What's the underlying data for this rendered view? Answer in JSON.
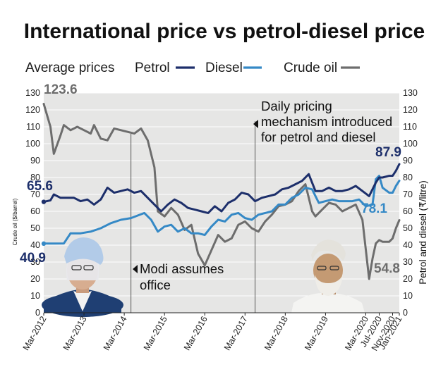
{
  "colors": {
    "petrol": "#1d2f6b",
    "diesel": "#3589c6",
    "crude": "#6d6d6d",
    "plot_bg": "#e6e6e5",
    "grid": "#ffffff"
  },
  "chart_data": {
    "type": "line",
    "title": "International price vs petrol-diesel price",
    "subtitle": "Average prices",
    "ylabel_left": "Crude oil ($/barrel)",
    "ylabel_right": "Petrol and diesel (₹/litre)",
    "ylim": [
      0,
      130
    ],
    "yticks": [
      0,
      10,
      20,
      30,
      40,
      50,
      60,
      70,
      80,
      90,
      100,
      110,
      120,
      130
    ],
    "xlim": [
      "2012-03",
      "2021-01"
    ],
    "xticks": [
      {
        "label": "Mar-2012",
        "x": "2012-03"
      },
      {
        "label": "Mar-2013",
        "x": "2013-03"
      },
      {
        "label": "Mar-2014",
        "x": "2014-03"
      },
      {
        "label": "Mar-2015",
        "x": "2015-03"
      },
      {
        "label": "Mar-2016",
        "x": "2016-03"
      },
      {
        "label": "Mar-2017",
        "x": "2017-03"
      },
      {
        "label": "Mar-2018",
        "x": "2018-03"
      },
      {
        "label": "Mar-2019",
        "x": "2019-03"
      },
      {
        "label": "Mar-2020",
        "x": "2020-03"
      },
      {
        "label": "Jul-2020",
        "x": "2020-07"
      },
      {
        "label": "Nov-2020",
        "x": "2020-11"
      },
      {
        "label": "Jan-2021",
        "x": "2021-01"
      }
    ],
    "grid": true,
    "series": [
      {
        "name": "Petrol",
        "color": "#1d2f6b",
        "points": [
          [
            "2012-03",
            65.6
          ],
          [
            "2012-05",
            66.5
          ],
          [
            "2012-06",
            70
          ],
          [
            "2012-08",
            68
          ],
          [
            "2012-10",
            68
          ],
          [
            "2012-12",
            68
          ],
          [
            "2013-02",
            66
          ],
          [
            "2013-04",
            67
          ],
          [
            "2013-06",
            64
          ],
          [
            "2013-08",
            67
          ],
          [
            "2013-10",
            74
          ],
          [
            "2013-12",
            71
          ],
          [
            "2014-02",
            72
          ],
          [
            "2014-04",
            73
          ],
          [
            "2014-06",
            71
          ],
          [
            "2014-08",
            72
          ],
          [
            "2014-10",
            68
          ],
          [
            "2014-12",
            64
          ],
          [
            "2015-02",
            60
          ],
          [
            "2015-04",
            64
          ],
          [
            "2015-06",
            67
          ],
          [
            "2015-08",
            65
          ],
          [
            "2015-10",
            62
          ],
          [
            "2015-12",
            61
          ],
          [
            "2016-02",
            60
          ],
          [
            "2016-04",
            59
          ],
          [
            "2016-06",
            63
          ],
          [
            "2016-08",
            60
          ],
          [
            "2016-10",
            65
          ],
          [
            "2016-12",
            67
          ],
          [
            "2017-02",
            71
          ],
          [
            "2017-04",
            70
          ],
          [
            "2017-06",
            66
          ],
          [
            "2017-08",
            68
          ],
          [
            "2017-10",
            69
          ],
          [
            "2017-12",
            70
          ],
          [
            "2018-02",
            73
          ],
          [
            "2018-04",
            74
          ],
          [
            "2018-06",
            76
          ],
          [
            "2018-08",
            78
          ],
          [
            "2018-10",
            82
          ],
          [
            "2018-12",
            72
          ],
          [
            "2019-02",
            72
          ],
          [
            "2019-04",
            74
          ],
          [
            "2019-06",
            72
          ],
          [
            "2019-08",
            72
          ],
          [
            "2019-10",
            73
          ],
          [
            "2019-12",
            75
          ],
          [
            "2020-02",
            72
          ],
          [
            "2020-04",
            69
          ],
          [
            "2020-06",
            77
          ],
          [
            "2020-07",
            80
          ],
          [
            "2020-08",
            80
          ],
          [
            "2020-10",
            81
          ],
          [
            "2020-11",
            81
          ],
          [
            "2020-12",
            84
          ],
          [
            "2021-01",
            87.9
          ]
        ]
      },
      {
        "name": "Diesel",
        "color": "#3589c6",
        "points": [
          [
            "2012-03",
            40.9
          ],
          [
            "2012-06",
            40.9
          ],
          [
            "2012-09",
            41
          ],
          [
            "2012-11",
            47
          ],
          [
            "2013-02",
            47
          ],
          [
            "2013-05",
            48
          ],
          [
            "2013-08",
            50
          ],
          [
            "2013-11",
            53
          ],
          [
            "2014-02",
            55
          ],
          [
            "2014-05",
            56
          ],
          [
            "2014-09",
            59
          ],
          [
            "2014-11",
            55
          ],
          [
            "2015-01",
            48
          ],
          [
            "2015-03",
            51
          ],
          [
            "2015-05",
            52
          ],
          [
            "2015-07",
            48
          ],
          [
            "2015-09",
            50
          ],
          [
            "2015-11",
            47
          ],
          [
            "2016-01",
            47
          ],
          [
            "2016-03",
            46
          ],
          [
            "2016-05",
            51
          ],
          [
            "2016-07",
            55
          ],
          [
            "2016-09",
            54
          ],
          [
            "2016-11",
            58
          ],
          [
            "2017-01",
            59
          ],
          [
            "2017-03",
            56
          ],
          [
            "2017-05",
            55
          ],
          [
            "2017-07",
            58
          ],
          [
            "2017-09",
            59
          ],
          [
            "2017-11",
            60
          ],
          [
            "2018-01",
            64
          ],
          [
            "2018-03",
            64
          ],
          [
            "2018-05",
            68
          ],
          [
            "2018-07",
            70
          ],
          [
            "2018-09",
            74
          ],
          [
            "2018-11",
            73
          ],
          [
            "2019-01",
            65
          ],
          [
            "2019-03",
            66
          ],
          [
            "2019-05",
            67
          ],
          [
            "2019-07",
            66
          ],
          [
            "2019-09",
            66
          ],
          [
            "2019-11",
            66
          ],
          [
            "2020-01",
            67
          ],
          [
            "2020-03",
            63
          ],
          [
            "2020-05",
            64
          ],
          [
            "2020-06",
            79
          ],
          [
            "2020-07",
            81
          ],
          [
            "2020-08",
            74
          ],
          [
            "2020-10",
            71
          ],
          [
            "2020-11",
            71
          ],
          [
            "2020-12",
            75
          ],
          [
            "2021-01",
            78.1
          ]
        ]
      },
      {
        "name": "Crude oil",
        "color": "#6d6d6d",
        "points": [
          [
            "2012-03",
            123.6
          ],
          [
            "2012-05",
            110
          ],
          [
            "2012-06",
            94
          ],
          [
            "2012-08",
            105
          ],
          [
            "2012-09",
            111
          ],
          [
            "2012-11",
            108
          ],
          [
            "2013-01",
            110
          ],
          [
            "2013-03",
            108
          ],
          [
            "2013-05",
            106
          ],
          [
            "2013-06",
            111
          ],
          [
            "2013-08",
            103
          ],
          [
            "2013-10",
            102
          ],
          [
            "2013-12",
            109
          ],
          [
            "2014-02",
            108
          ],
          [
            "2014-04",
            107
          ],
          [
            "2014-06",
            106
          ],
          [
            "2014-08",
            109
          ],
          [
            "2014-10",
            102
          ],
          [
            "2014-12",
            86
          ],
          [
            "2015-01",
            60
          ],
          [
            "2015-03",
            57
          ],
          [
            "2015-05",
            62
          ],
          [
            "2015-07",
            58
          ],
          [
            "2015-09",
            49
          ],
          [
            "2015-11",
            52
          ],
          [
            "2016-01",
            35
          ],
          [
            "2016-03",
            28
          ],
          [
            "2016-05",
            37
          ],
          [
            "2016-07",
            46
          ],
          [
            "2016-09",
            42
          ],
          [
            "2016-11",
            44
          ],
          [
            "2017-01",
            52
          ],
          [
            "2017-03",
            54
          ],
          [
            "2017-05",
            50
          ],
          [
            "2017-07",
            48
          ],
          [
            "2017-09",
            54
          ],
          [
            "2017-11",
            58
          ],
          [
            "2018-01",
            63
          ],
          [
            "2018-03",
            64
          ],
          [
            "2018-05",
            66
          ],
          [
            "2018-07",
            72
          ],
          [
            "2018-09",
            76
          ],
          [
            "2018-11",
            60
          ],
          [
            "2018-12",
            57
          ],
          [
            "2019-02",
            61
          ],
          [
            "2019-04",
            65
          ],
          [
            "2019-06",
            64
          ],
          [
            "2019-08",
            60
          ],
          [
            "2019-10",
            62
          ],
          [
            "2019-12",
            64
          ],
          [
            "2020-02",
            55
          ],
          [
            "2020-04",
            20
          ],
          [
            "2020-05",
            32
          ],
          [
            "2020-06",
            41
          ],
          [
            "2020-07",
            43
          ],
          [
            "2020-08",
            42
          ],
          [
            "2020-10",
            42
          ],
          [
            "2020-11",
            44
          ],
          [
            "2020-12",
            50
          ],
          [
            "2021-01",
            54.8
          ]
        ]
      }
    ],
    "annotations": {
      "crude_start": "123.6",
      "petrol_start": "65.6",
      "diesel_start": "40.9",
      "petrol_end": "87.9",
      "diesel_end": "78.1",
      "crude_end": "54.8",
      "daily_pricing_line1": "Daily pricing",
      "daily_pricing_line2": "mechanism introduced",
      "daily_pricing_line3": "for petrol and diesel",
      "daily_pricing_date": "2017-06",
      "modi_line1": "Modi assumes",
      "modi_line2": "office",
      "modi_date": "2014-05"
    }
  }
}
